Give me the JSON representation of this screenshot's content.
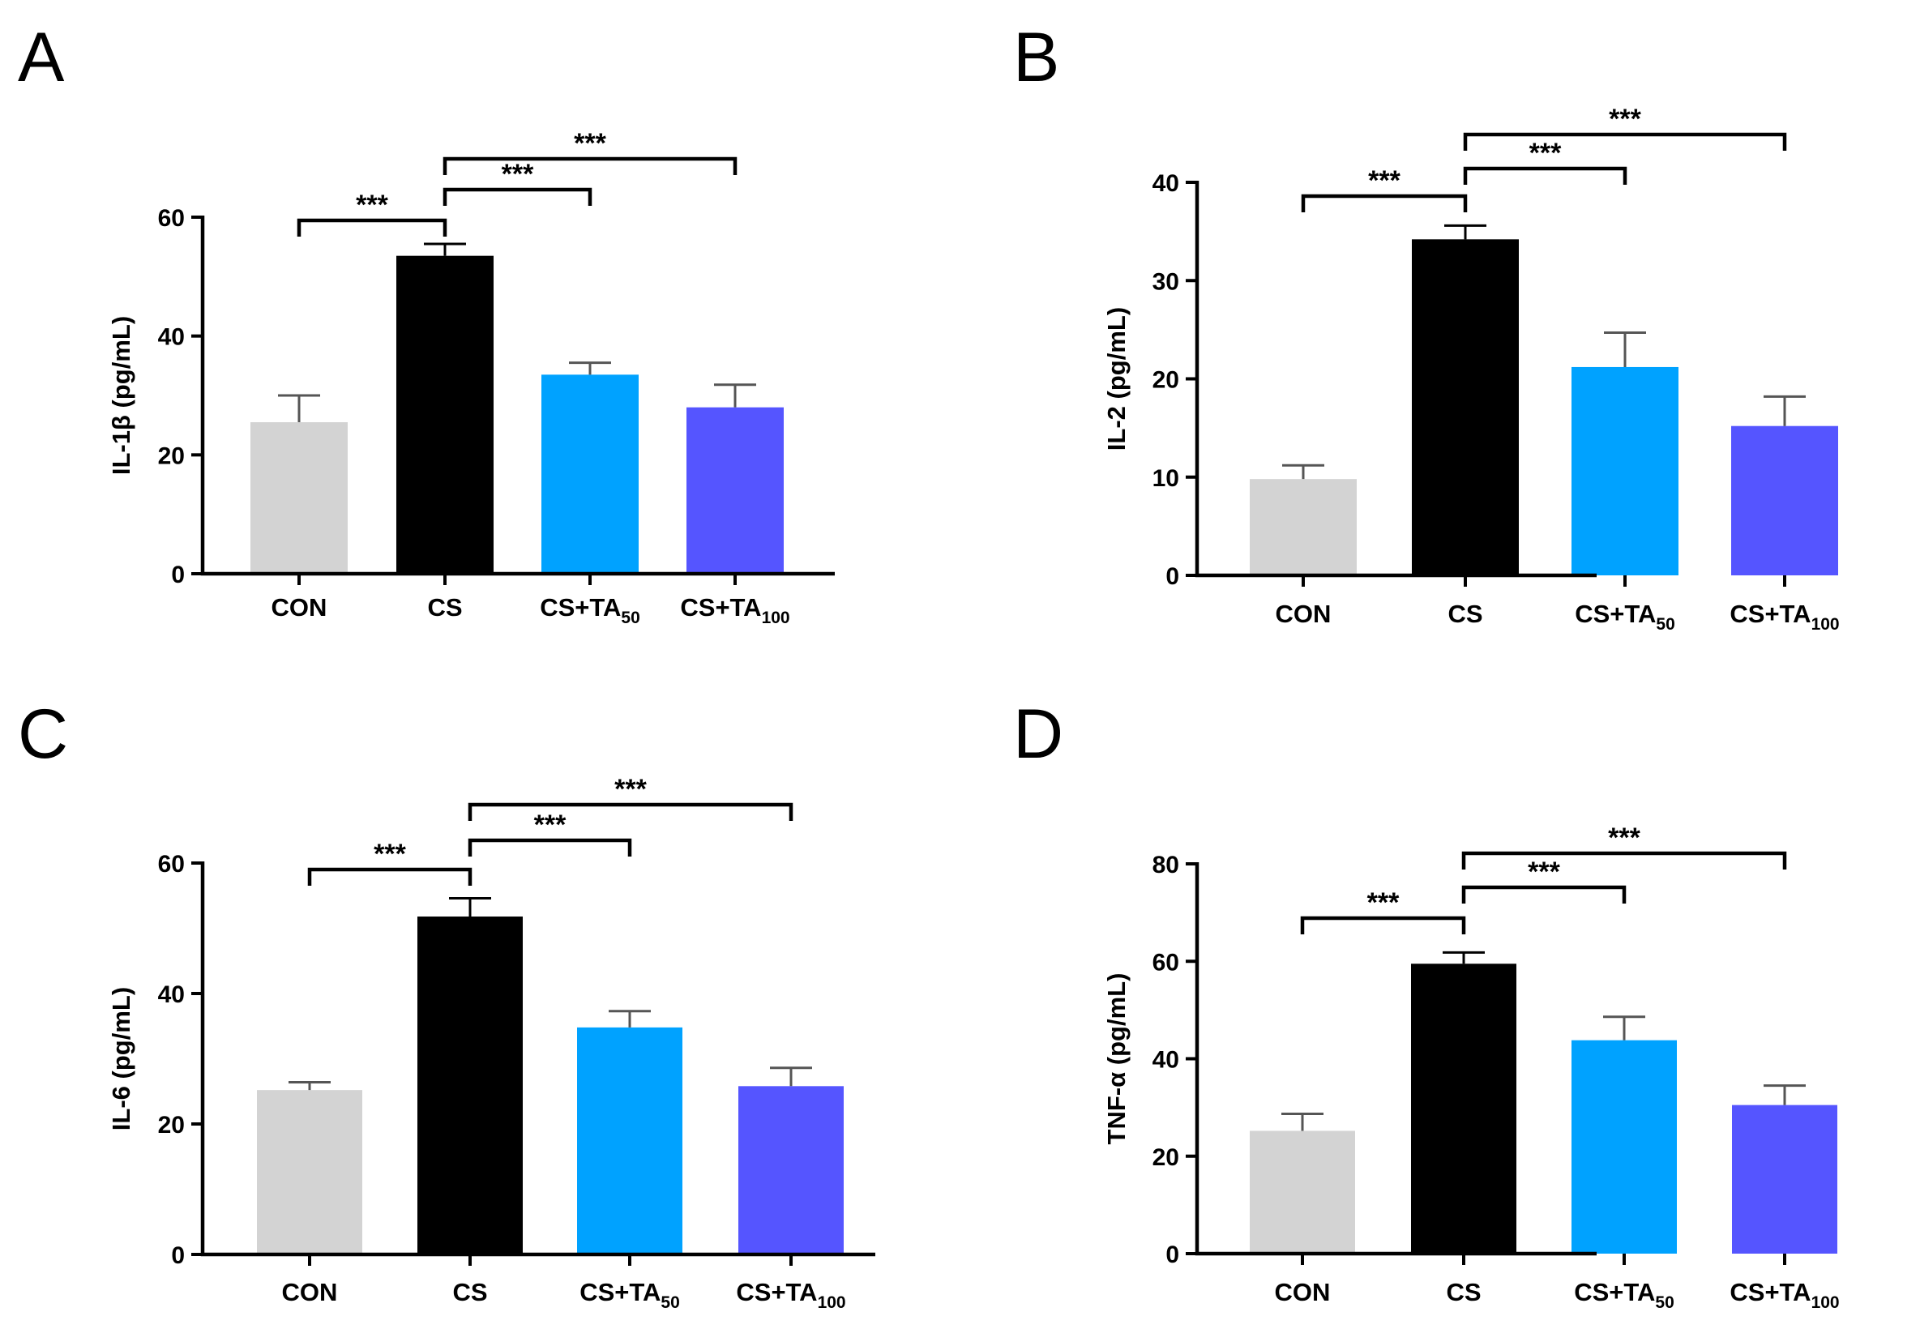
{
  "chart_data": [
    {
      "type": "bar",
      "panel": "A",
      "title": "",
      "xlabel": "",
      "ylabel": "IL-1β (pg/mL)",
      "ylim": [
        0,
        60
      ],
      "yticks": [
        0,
        20,
        40,
        60
      ],
      "categories": [
        {
          "main": "CON",
          "sub": ""
        },
        {
          "main": "CS",
          "sub": ""
        },
        {
          "main": "CS+TA",
          "sub": "50"
        },
        {
          "main": "CS+TA",
          "sub": "100"
        }
      ],
      "values": [
        25.5,
        53.5,
        33.5,
        28.0
      ],
      "errors": [
        4.5,
        2.0,
        2.0,
        3.8
      ],
      "colors": [
        "#d3d3d3",
        "#000000",
        "#00a2ff",
        "#5555ff"
      ],
      "significance": [
        {
          "from": 0,
          "to": 1,
          "label": "***"
        },
        {
          "from": 1,
          "to": 2,
          "label": "***"
        },
        {
          "from": 1,
          "to": 3,
          "label": "***"
        }
      ]
    },
    {
      "type": "bar",
      "panel": "B",
      "title": "",
      "xlabel": "",
      "ylabel": "IL-2 (pg/mL)",
      "ylim": [
        0,
        40
      ],
      "yticks": [
        0,
        10,
        20,
        30,
        40
      ],
      "categories": [
        {
          "main": "CON",
          "sub": ""
        },
        {
          "main": "CS",
          "sub": ""
        },
        {
          "main": "CS+TA",
          "sub": "50"
        },
        {
          "main": "CS+TA",
          "sub": "100"
        }
      ],
      "values": [
        9.8,
        34.2,
        21.2,
        15.2
      ],
      "errors": [
        1.4,
        1.4,
        3.5,
        3.0
      ],
      "colors": [
        "#d3d3d3",
        "#000000",
        "#00a2ff",
        "#5555ff"
      ],
      "significance": [
        {
          "from": 0,
          "to": 1,
          "label": "***"
        },
        {
          "from": 1,
          "to": 2,
          "label": "***"
        },
        {
          "from": 1,
          "to": 3,
          "label": "***"
        }
      ]
    },
    {
      "type": "bar",
      "panel": "C",
      "title": "",
      "xlabel": "",
      "ylabel": "IL-6 (pg/mL)",
      "ylim": [
        0,
        60
      ],
      "yticks": [
        0,
        20,
        40,
        60
      ],
      "categories": [
        {
          "main": "CON",
          "sub": ""
        },
        {
          "main": "CS",
          "sub": ""
        },
        {
          "main": "CS+TA",
          "sub": "50"
        },
        {
          "main": "CS+TA",
          "sub": "100"
        }
      ],
      "values": [
        25.2,
        51.8,
        34.8,
        25.8
      ],
      "errors": [
        1.2,
        2.8,
        2.5,
        2.8
      ],
      "colors": [
        "#d3d3d3",
        "#000000",
        "#00a2ff",
        "#5555ff"
      ],
      "significance": [
        {
          "from": 0,
          "to": 1,
          "label": "***"
        },
        {
          "from": 1,
          "to": 2,
          "label": "***"
        },
        {
          "from": 1,
          "to": 3,
          "label": "***"
        }
      ]
    },
    {
      "type": "bar",
      "panel": "D",
      "title": "",
      "xlabel": "",
      "ylabel": "TNF-α (pg/mL)",
      "ylim": [
        0,
        80
      ],
      "yticks": [
        0,
        20,
        40,
        60,
        80
      ],
      "categories": [
        {
          "main": "CON",
          "sub": ""
        },
        {
          "main": "CS",
          "sub": ""
        },
        {
          "main": "CS+TA",
          "sub": "50"
        },
        {
          "main": "CS+TA",
          "sub": "100"
        }
      ],
      "values": [
        25.2,
        59.5,
        43.8,
        30.5
      ],
      "errors": [
        3.5,
        2.3,
        4.8,
        4.0
      ],
      "colors": [
        "#d3d3d3",
        "#000000",
        "#00a2ff",
        "#5555ff"
      ],
      "significance": [
        {
          "from": 0,
          "to": 1,
          "label": "***"
        },
        {
          "from": 1,
          "to": 2,
          "label": "***"
        },
        {
          "from": 1,
          "to": 3,
          "label": "***"
        }
      ]
    }
  ]
}
